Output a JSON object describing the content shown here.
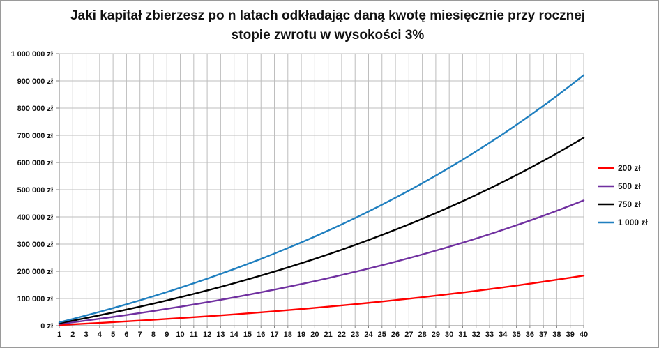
{
  "chart_data": {
    "type": "line",
    "title_line1": "Jaki kapitał zbierzesz po n latach odkładając daną kwotę miesięcznie przy rocznej",
    "title_line2": "stopie zwrotu w wysokości 3%",
    "xlabel": "",
    "ylabel": "",
    "x": [
      1,
      2,
      3,
      4,
      5,
      6,
      7,
      8,
      9,
      10,
      11,
      12,
      13,
      14,
      15,
      16,
      17,
      18,
      19,
      20,
      21,
      22,
      23,
      24,
      25,
      26,
      27,
      28,
      29,
      30,
      31,
      32,
      33,
      34,
      35,
      36,
      37,
      38,
      39,
      40
    ],
    "ylim": [
      0,
      1000000
    ],
    "yticks": [
      {
        "value": 0,
        "label": "0 zł"
      },
      {
        "value": 100000,
        "label": "100 000 zł"
      },
      {
        "value": 200000,
        "label": "200 000 zł"
      },
      {
        "value": 300000,
        "label": "300 000 zł"
      },
      {
        "value": 400000,
        "label": "400 000 zł"
      },
      {
        "value": 500000,
        "label": "500 000 zł"
      },
      {
        "value": 600000,
        "label": "600 000 zł"
      },
      {
        "value": 700000,
        "label": "700 000 zł"
      },
      {
        "value": 800000,
        "label": "800 000 zł"
      },
      {
        "value": 900000,
        "label": "900 000 zł"
      },
      {
        "value": 1000000,
        "label": "1 000 000 zł"
      }
    ],
    "grid": true,
    "legend_position": "right",
    "series": [
      {
        "name": "200 zł",
        "color": "#ff0000",
        "values": [
          2433,
          4941,
          7524,
          10185,
          12926,
          15750,
          18659,
          21656,
          24743,
          27923,
          31199,
          34574,
          38051,
          41633,
          45323,
          49124,
          53040,
          57074,
          61230,
          65511,
          69921,
          74464,
          79145,
          83967,
          88934,
          94051,
          99323,
          104753,
          110348,
          116112,
          122050,
          128167,
          134469,
          140961,
          147649,
          154539,
          161637,
          168950,
          176484,
          184245
        ]
      },
      {
        "name": "500 zł",
        "color": "#7030a0",
        "values": [
          6083,
          12352,
          18810,
          25462,
          32315,
          39375,
          46648,
          54141,
          61859,
          69811,
          78002,
          86441,
          95134,
          104090,
          113316,
          122821,
          132612,
          142699,
          153090,
          163795,
          174823,
          186184,
          197887,
          209944,
          222365,
          235161,
          248343,
          261923,
          275913,
          290325,
          305171,
          320465,
          336221,
          352452,
          369172,
          386396,
          404139,
          422417,
          441246,
          460642
        ]
      },
      {
        "name": "750 zł",
        "color": "#000000",
        "values": [
          9124,
          18529,
          28216,
          38194,
          48473,
          59062,
          69972,
          81211,
          92789,
          104716,
          117003,
          129662,
          142702,
          156135,
          169974,
          184231,
          198918,
          214048,
          229635,
          245692,
          262234,
          279275,
          296831,
          314916,
          333547,
          352741,
          372515,
          392885,
          413870,
          435488,
          457757,
          480698,
          504331,
          528677,
          553758,
          579596,
          606212,
          633631,
          661877,
          690974
        ]
      },
      {
        "name": "1 000 zł",
        "color": "#1f7fbf",
        "values": [
          12165,
          24705,
          37621,
          50925,
          64631,
          78750,
          93295,
          108281,
          123719,
          139622,
          156004,
          172883,
          190268,
          208180,
          226632,
          245642,
          265225,
          285399,
          306180,
          327590,
          349646,
          372367,
          395775,
          419888,
          444730,
          470322,
          496686,
          523846,
          551826,
          580651,
          610345,
          640935,
          672448,
          704912,
          738356,
          772809,
          808303,
          844866,
          882535,
          921334
        ]
      }
    ]
  }
}
